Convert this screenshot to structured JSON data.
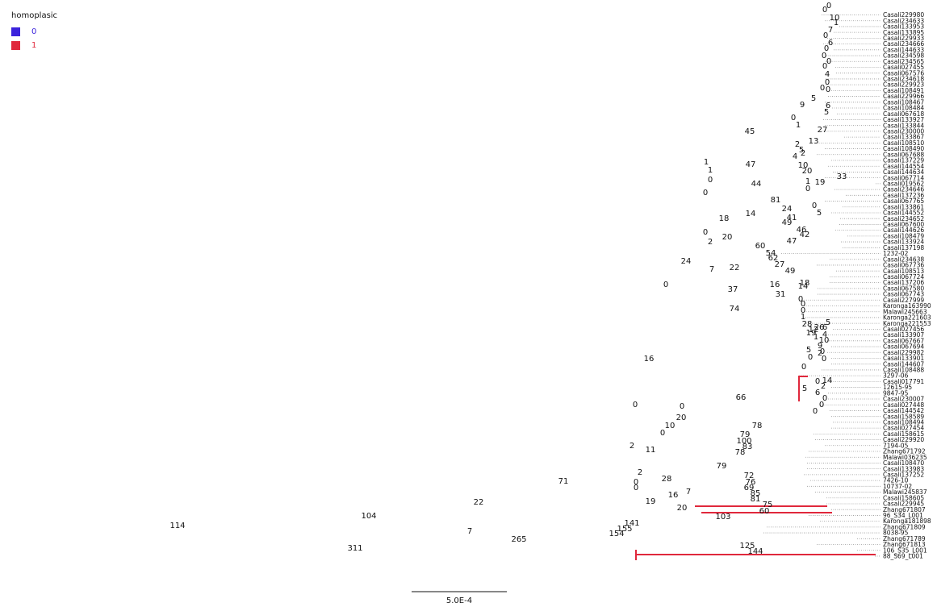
{
  "legend": {
    "title": "homoplasic",
    "items": [
      {
        "label": "0",
        "color": "#3b22dc"
      },
      {
        "label": "1",
        "color": "#e0283c"
      }
    ]
  },
  "scale_bar": {
    "label": "5.0E-4"
  },
  "colors": {
    "branch": "#3b22dc",
    "homoplasic": "#e0283c",
    "dotted": "#9a9a9a"
  },
  "taxa": [
    "Casali229980",
    "Casali234633",
    "Casali133953",
    "Casali133895",
    "Casali229933",
    "Casali234666",
    "Casali144633",
    "Casali234598",
    "Casali234565",
    "Casali027455",
    "Casali067576",
    "Casali234618",
    "Casali229923",
    "Casali108491",
    "Casali229966",
    "Casali108467",
    "Casali108484",
    "Casali067618",
    "Casali133927",
    "Casali133844",
    "Casali230000",
    "Casali133867",
    "Casali108510",
    "Casali108490",
    "Casali067688",
    "Casali137229",
    "Casali144554",
    "Casali144634",
    "Casali067714",
    "Casali019562",
    "Casali234646",
    "Casali137236",
    "Casali067765",
    "Casali133861",
    "Casali144552",
    "Casali234652",
    "Casali067600",
    "Casali144626",
    "Casali108479",
    "Casali133924",
    "Casali137198",
    "1232-02",
    "Casali234638",
    "Casali067736",
    "Casali108513",
    "Casali067724",
    "Casali137206",
    "Casali067580",
    "Casali067743",
    "Casali227999",
    "Karonga163990",
    "Malawi245663",
    "Karonga221603",
    "Karonga221553",
    "Casali027456",
    "Casali133907",
    "Casali067667",
    "Casali067694",
    "Casali229982",
    "Casali133901",
    "Casali144607",
    "Casali108488",
    "3297-06",
    "Casali017791",
    "12615-95",
    "9847-95",
    "Casali230007",
    "Casali027448",
    "Casali144542",
    "Casali158589",
    "Casali108494",
    "Casali027454",
    "Casali158615",
    "Casali229920",
    "7194-05",
    "Zhang671792",
    "Malawi036235",
    "Casali108470",
    "Casali133983",
    "Casali137252",
    "7426-10",
    "10737-02",
    "Malawi245837",
    "Casali158605",
    "Casali229945",
    "Zhang671807",
    "96_S34_L001",
    "Karonga181898",
    "Zhang671809",
    "8038-95",
    "Zhang671789",
    "Zhang671813",
    "106_S35_L001",
    "88_S69_L001"
  ],
  "branch_labels": [
    "114",
    "311",
    "104",
    "7",
    "265",
    "22",
    "71",
    "2",
    "141",
    "155",
    "154",
    "125",
    "144",
    "0",
    "16",
    "11",
    "2",
    "0",
    "28",
    "79",
    "0",
    "19",
    "16",
    "7",
    "20",
    "103",
    "75",
    "60",
    "72",
    "76",
    "69",
    "85",
    "81",
    "0",
    "20",
    "10",
    "0",
    "78",
    "79",
    "100",
    "83",
    "78",
    "66",
    "0",
    "24",
    "74",
    "1",
    "45",
    "47",
    "44",
    "81",
    "33",
    "19",
    "0",
    "0",
    "1",
    "0",
    "0",
    "9",
    "5",
    "27",
    "13",
    "2",
    "0",
    "1",
    "4",
    "2",
    "5",
    "10",
    "20",
    "1",
    "0",
    "18",
    "14",
    "20",
    "2",
    "7",
    "37",
    "49",
    "41",
    "24",
    "5",
    "60",
    "47",
    "42",
    "54",
    "62",
    "46",
    "22",
    "27",
    "49",
    "18",
    "16",
    "31",
    "14",
    "0",
    "0",
    "0",
    "1",
    "0",
    "0",
    "10",
    "1",
    "7",
    "0",
    "6",
    "0",
    "0",
    "0",
    "0",
    "4",
    "0",
    "0",
    "0",
    "6",
    "5",
    "5",
    "1",
    "12",
    "0",
    "9",
    "28",
    "26",
    "19",
    "0",
    "14",
    "5",
    "6",
    "0",
    "0",
    "0",
    "2",
    "2",
    "5",
    "6",
    "4",
    "10",
    "0",
    "0",
    "0"
  ]
}
